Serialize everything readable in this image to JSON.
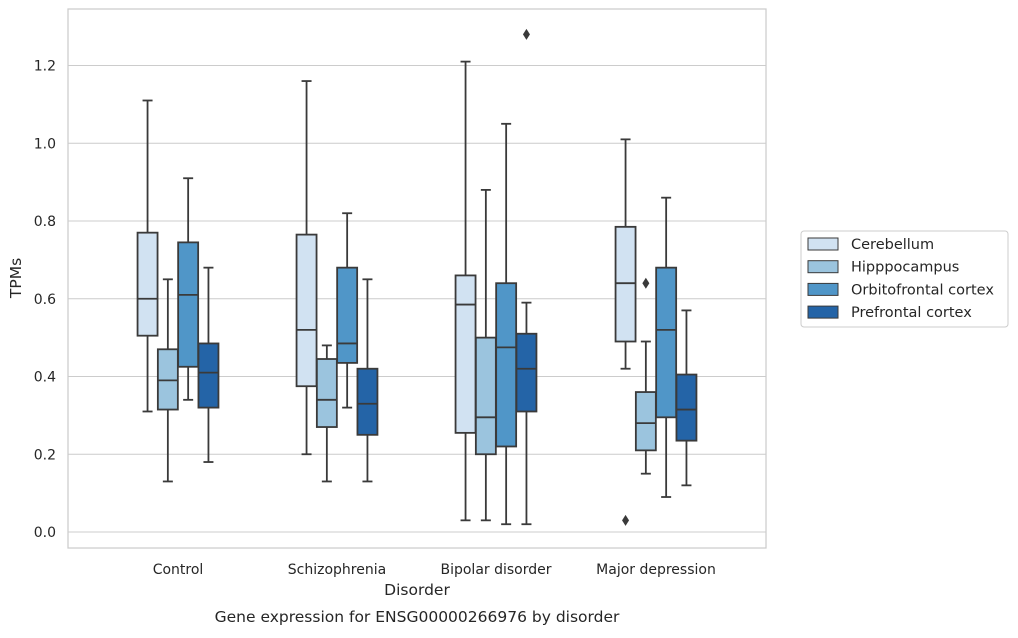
{
  "chart_data": {
    "type": "box",
    "title": "",
    "caption": "Gene expression for ENSG00000266976 by disorder",
    "xlabel": "Disorder",
    "ylabel": "TPMs",
    "ylim": [
      -0.04,
      1.34
    ],
    "yticks": [
      0.0,
      0.2,
      0.4,
      0.6,
      0.8,
      1.0,
      1.2
    ],
    "grid": "horizontal",
    "legend_position": "right",
    "categories": [
      "Control",
      "Schizophrenia",
      "Bipolar disorder",
      "Major depression"
    ],
    "series": [
      {
        "name": "Cerebellum",
        "color": "#d1e2f2",
        "boxes": [
          {
            "whisker_low": 0.31,
            "q1": 0.505,
            "median": 0.6,
            "q3": 0.77,
            "whisker_high": 1.11,
            "outliers": []
          },
          {
            "whisker_low": 0.2,
            "q1": 0.375,
            "median": 0.52,
            "q3": 0.765,
            "whisker_high": 1.16,
            "outliers": []
          },
          {
            "whisker_low": 0.03,
            "q1": 0.255,
            "median": 0.585,
            "q3": 0.66,
            "whisker_high": 1.21,
            "outliers": []
          },
          {
            "whisker_low": 0.42,
            "q1": 0.49,
            "median": 0.64,
            "q3": 0.785,
            "whisker_high": 1.01,
            "outliers": [
              0.03
            ]
          }
        ]
      },
      {
        "name": "Hipppocampus",
        "color": "#9bc4de",
        "boxes": [
          {
            "whisker_low": 0.13,
            "q1": 0.315,
            "median": 0.39,
            "q3": 0.47,
            "whisker_high": 0.65,
            "outliers": []
          },
          {
            "whisker_low": 0.13,
            "q1": 0.27,
            "median": 0.34,
            "q3": 0.445,
            "whisker_high": 0.48,
            "outliers": []
          },
          {
            "whisker_low": 0.03,
            "q1": 0.2,
            "median": 0.295,
            "q3": 0.5,
            "whisker_high": 0.88,
            "outliers": []
          },
          {
            "whisker_low": 0.15,
            "q1": 0.21,
            "median": 0.28,
            "q3": 0.36,
            "whisker_high": 0.49,
            "outliers": [
              0.64
            ]
          }
        ]
      },
      {
        "name": "Orbitofrontal cortex",
        "color": "#5096c8",
        "boxes": [
          {
            "whisker_low": 0.34,
            "q1": 0.425,
            "median": 0.61,
            "q3": 0.745,
            "whisker_high": 0.91,
            "outliers": []
          },
          {
            "whisker_low": 0.32,
            "q1": 0.435,
            "median": 0.485,
            "q3": 0.68,
            "whisker_high": 0.82,
            "outliers": []
          },
          {
            "whisker_low": 0.02,
            "q1": 0.22,
            "median": 0.475,
            "q3": 0.64,
            "whisker_high": 1.05,
            "outliers": []
          },
          {
            "whisker_low": 0.09,
            "q1": 0.295,
            "median": 0.52,
            "q3": 0.68,
            "whisker_high": 0.86,
            "outliers": []
          }
        ]
      },
      {
        "name": "Prefrontal cortex",
        "color": "#2464a7",
        "boxes": [
          {
            "whisker_low": 0.18,
            "q1": 0.32,
            "median": 0.41,
            "q3": 0.485,
            "whisker_high": 0.68,
            "outliers": []
          },
          {
            "whisker_low": 0.13,
            "q1": 0.25,
            "median": 0.33,
            "q3": 0.42,
            "whisker_high": 0.65,
            "outliers": []
          },
          {
            "whisker_low": 0.02,
            "q1": 0.31,
            "median": 0.42,
            "q3": 0.51,
            "whisker_high": 0.59,
            "outliers": [
              1.28
            ]
          },
          {
            "whisker_low": 0.12,
            "q1": 0.235,
            "median": 0.315,
            "q3": 0.405,
            "whisker_high": 0.57,
            "outliers": []
          }
        ]
      }
    ],
    "colors": {
      "line": "#3a3a3a",
      "grid": "#cccccc",
      "frame": "#cccccc",
      "text": "#262626"
    }
  }
}
